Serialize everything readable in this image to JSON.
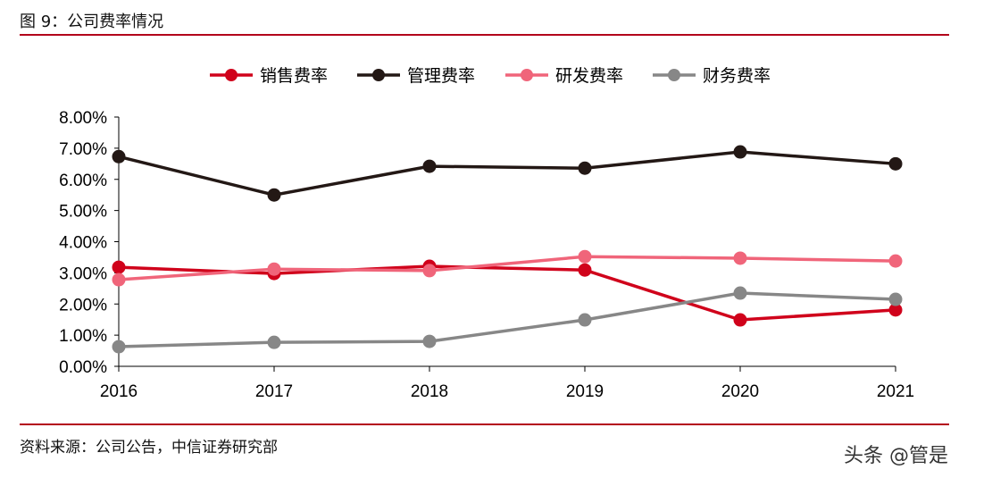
{
  "header": {
    "title": "图 9：公司费率情况"
  },
  "footer": {
    "source": "资料来源：公司公告，中信证券研究部",
    "watermark": "头条 @管是"
  },
  "chart_data": {
    "type": "line",
    "title": "",
    "xlabel": "",
    "ylabel": "",
    "categories": [
      "2016",
      "2017",
      "2018",
      "2019",
      "2020",
      "2021"
    ],
    "ylim": [
      0,
      0.08
    ],
    "yticks": [
      "0.00%",
      "1.00%",
      "2.00%",
      "3.00%",
      "4.00%",
      "5.00%",
      "6.00%",
      "7.00%",
      "8.00%"
    ],
    "grid": false,
    "legend": "top",
    "series": [
      {
        "name": "销售费率",
        "color": "#d0021b",
        "values": [
          3.18,
          2.98,
          3.21,
          3.09,
          1.49,
          1.81
        ]
      },
      {
        "name": "管理费率",
        "color": "#231815",
        "values": [
          6.73,
          5.5,
          6.42,
          6.36,
          6.88,
          6.5
        ]
      },
      {
        "name": "研发费率",
        "color": "#f0657a",
        "values": [
          2.78,
          3.12,
          3.07,
          3.52,
          3.47,
          3.38
        ]
      },
      {
        "name": "财务费率",
        "color": "#878787",
        "values": [
          0.63,
          0.77,
          0.8,
          1.49,
          2.35,
          2.15
        ]
      }
    ]
  }
}
